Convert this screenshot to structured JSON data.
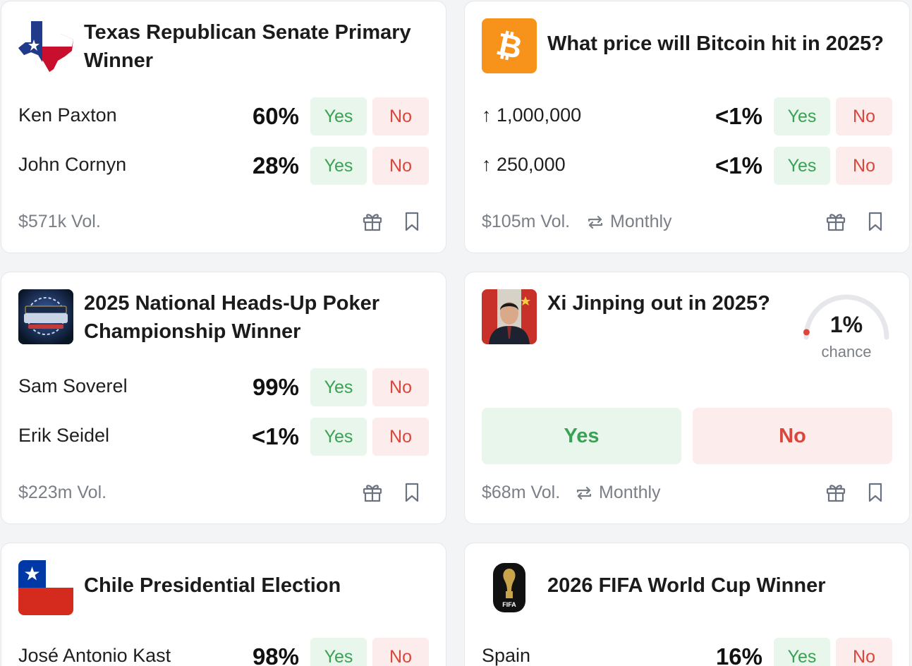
{
  "cards": [
    {
      "title": "Texas Republican Senate Primary Winner",
      "thumb_icon": "texas-flag-icon",
      "outcomes": [
        {
          "name": "Ken Paxton",
          "pct": "60%",
          "yes": "Yes",
          "no": "No"
        },
        {
          "name": "John Cornyn",
          "pct": "28%",
          "yes": "Yes",
          "no": "No"
        }
      ],
      "volume": "$571k Vol."
    },
    {
      "title": "What price will Bitcoin hit in 2025?",
      "thumb_icon": "bitcoin-icon",
      "outcomes": [
        {
          "name": "↑ 1,000,000",
          "pct": "<1%",
          "yes": "Yes",
          "no": "No"
        },
        {
          "name": "↑ 250,000",
          "pct": "<1%",
          "yes": "Yes",
          "no": "No"
        }
      ],
      "volume": "$105m Vol.",
      "recurrence": "Monthly"
    },
    {
      "title": "2025 National Heads-Up Poker Championship Winner",
      "thumb_icon": "poker-logo-icon",
      "outcomes": [
        {
          "name": "Sam Soverel",
          "pct": "99%",
          "yes": "Yes",
          "no": "No"
        },
        {
          "name": "Erik Seidel",
          "pct": "<1%",
          "yes": "Yes",
          "no": "No"
        }
      ],
      "volume": "$223m Vol."
    },
    {
      "title": "Xi Jinping out in 2025?",
      "thumb_icon": "portrait-photo",
      "gauge": {
        "value": "1%",
        "label": "chance",
        "fraction": 0.01
      },
      "yes": "Yes",
      "no": "No",
      "volume": "$68m Vol.",
      "recurrence": "Monthly"
    },
    {
      "title": "Chile Presidential Election",
      "thumb_icon": "chile-flag-icon",
      "outcomes": [
        {
          "name": "José Antonio Kast",
          "pct": "98%",
          "yes": "Yes",
          "no": "No"
        }
      ]
    },
    {
      "title": "2026 FIFA World Cup Winner",
      "thumb_icon": "fifa-world-cup-logo-icon",
      "thumb_text": "FIFA",
      "outcomes": [
        {
          "name": "Spain",
          "pct": "16%",
          "yes": "Yes",
          "no": "No"
        }
      ]
    }
  ],
  "colors": {
    "yes_bg": "#e9f6ec",
    "yes_text": "#3aa254",
    "no_bg": "#fcecec",
    "no_text": "#d9473c",
    "muted": "#7a7f87",
    "bitcoin": "#f7931a"
  }
}
